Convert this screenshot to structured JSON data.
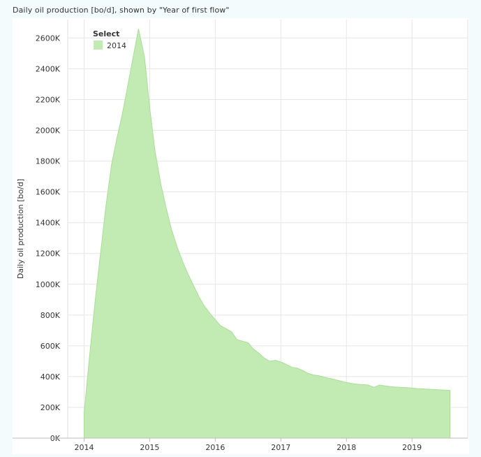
{
  "panel": {
    "title": "Daily oil production [bo/d], shown by \"Year of first flow\""
  },
  "chart_data": {
    "type": "area",
    "title": "",
    "xlabel": "",
    "ylabel": "Daily oil production [bo/d]",
    "xlim": [
      2013.75,
      2019.85
    ],
    "ylim": [
      0,
      2720
    ],
    "x_ticks": [
      2014,
      2015,
      2016,
      2017,
      2018,
      2019
    ],
    "x_tick_labels": [
      "2014",
      "2015",
      "2016",
      "2017",
      "2018",
      "2019"
    ],
    "y_ticks": [
      0,
      200,
      400,
      600,
      800,
      1000,
      1200,
      1400,
      1600,
      1800,
      2000,
      2200,
      2400,
      2600
    ],
    "y_tick_labels": [
      "0K",
      "200K",
      "400K",
      "600K",
      "800K",
      "1000K",
      "1200K",
      "1400K",
      "1600K",
      "1800K",
      "2000K",
      "2200K",
      "2400K",
      "2600K"
    ],
    "y_unit_note": "values in thousands (K) of bo/d",
    "grid": true,
    "legend": {
      "title": "Select",
      "position": "top-left"
    },
    "series": [
      {
        "name": "2014",
        "color": "#c2ebb4",
        "edge_color": "#a9dd98",
        "x": [
          2014.0,
          2014.08,
          2014.17,
          2014.25,
          2014.33,
          2014.42,
          2014.5,
          2014.58,
          2014.67,
          2014.75,
          2014.83,
          2014.92,
          2015.0,
          2015.08,
          2015.17,
          2015.25,
          2015.33,
          2015.42,
          2015.5,
          2015.58,
          2015.67,
          2015.75,
          2015.83,
          2015.92,
          2016.0,
          2016.08,
          2016.17,
          2016.25,
          2016.33,
          2016.42,
          2016.5,
          2016.58,
          2016.67,
          2016.75,
          2016.83,
          2016.92,
          2017.0,
          2017.08,
          2017.17,
          2017.25,
          2017.33,
          2017.42,
          2017.5,
          2017.58,
          2017.67,
          2017.75,
          2017.83,
          2017.92,
          2018.0,
          2018.08,
          2018.17,
          2018.25,
          2018.33,
          2018.42,
          2018.5,
          2018.58,
          2018.67,
          2018.75,
          2018.83,
          2018.92,
          2019.0,
          2019.08,
          2019.17,
          2019.25,
          2019.33,
          2019.42,
          2019.5,
          2019.58
        ],
        "values": [
          160,
          520,
          900,
          1200,
          1500,
          1780,
          1950,
          2100,
          2300,
          2480,
          2660,
          2480,
          2150,
          1870,
          1650,
          1500,
          1360,
          1240,
          1150,
          1070,
          990,
          920,
          860,
          810,
          770,
          730,
          710,
          690,
          640,
          630,
          620,
          580,
          550,
          520,
          500,
          505,
          495,
          480,
          460,
          455,
          440,
          420,
          410,
          405,
          395,
          388,
          380,
          370,
          362,
          355,
          350,
          348,
          345,
          330,
          345,
          340,
          335,
          332,
          330,
          328,
          326,
          322,
          320,
          318,
          316,
          314,
          312,
          310
        ]
      }
    ]
  }
}
